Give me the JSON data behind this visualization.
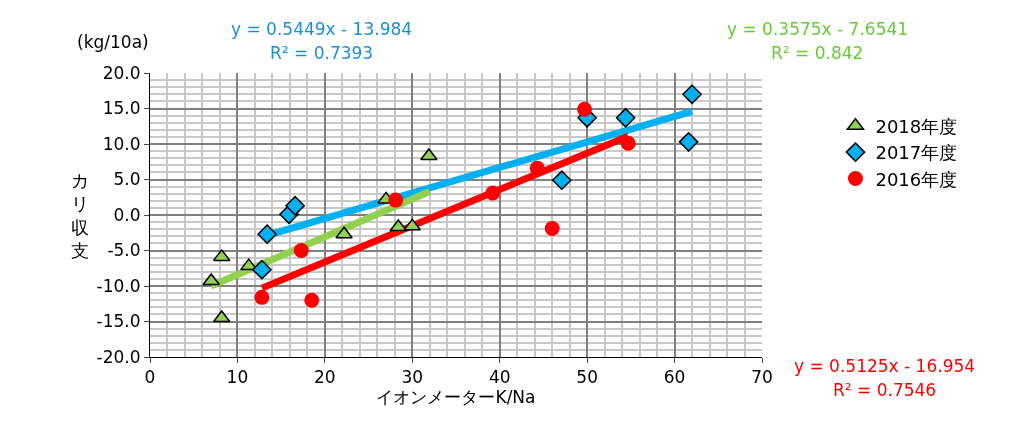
{
  "chart_data": {
    "type": "scatter",
    "xlabel": "イオンメーターK/Na",
    "ylabel": "カリ収支",
    "xlim": [
      0,
      70
    ],
    "xticks": [
      0,
      10,
      20,
      30,
      40,
      50,
      60,
      70
    ],
    "ylim": [
      -20,
      20
    ],
    "yticks": [
      {
        "value": -20,
        "label": "-20.0"
      },
      {
        "value": -15,
        "label": "-15.0"
      },
      {
        "value": -10,
        "label": "-10.0"
      },
      {
        "value": -5,
        "label": "-5.0"
      },
      {
        "value": 0,
        "label": "0.0"
      },
      {
        "value": 5,
        "label": "5.0"
      },
      {
        "value": 10,
        "label": "10.0"
      },
      {
        "value": 15,
        "label": "15.0"
      },
      {
        "value": 20,
        "label": "20.0"
      }
    ],
    "grid": true,
    "legend": "right",
    "series": [
      {
        "name": "2018年度",
        "color": "#92d050",
        "marker": "triangle",
        "x": [
          7.0,
          8.2,
          8.2,
          11.3,
          22.2,
          27.0,
          28.4,
          30.0,
          31.9
        ],
        "values": [
          -9.3,
          -5.9,
          -14.5,
          -7.2,
          -2.7,
          2.2,
          -1.7,
          -1.6,
          8.3
        ]
      },
      {
        "name": "2017年度",
        "color": "#00b0f0",
        "marker": "diamond",
        "x": [
          12.8,
          13.4,
          15.9,
          16.6,
          47.1,
          50.0,
          54.4,
          61.6,
          62.0
        ],
        "values": [
          -7.7,
          -2.7,
          0.1,
          1.3,
          4.9,
          13.7,
          13.7,
          10.3,
          17.0
        ]
      },
      {
        "name": "2016年度",
        "color": "#ff0000",
        "marker": "circle",
        "x": [
          12.8,
          17.3,
          18.5,
          28.1,
          39.2,
          44.3,
          46.0,
          49.7,
          54.7
        ],
        "values": [
          -11.6,
          -5.0,
          -12.0,
          2.1,
          3.1,
          6.6,
          -1.9,
          14.9,
          10.1
        ]
      },
      {
        "type": "line",
        "color": "#00b0f0",
        "x": [
          13.0,
          62.0
        ],
        "values": [
          -3.0,
          14.6
        ]
      },
      {
        "type": "line",
        "color": "#92d050",
        "x": [
          7.0,
          32.0
        ],
        "values": [
          -10.0,
          3.3
        ]
      },
      {
        "type": "line",
        "color": "#ff0000",
        "x": [
          12.8,
          54.7
        ],
        "values": [
          -10.3,
          11.1
        ]
      }
    ],
    "annotations": [
      "y = 0.5449x - 13.984",
      "R² = 0.7393",
      "y = 0.3575x - 7.6541",
      "R² = 0.842",
      "y = 0.5125x - 16.954",
      "R² = 0.7546",
      "(kg/10a)"
    ]
  }
}
